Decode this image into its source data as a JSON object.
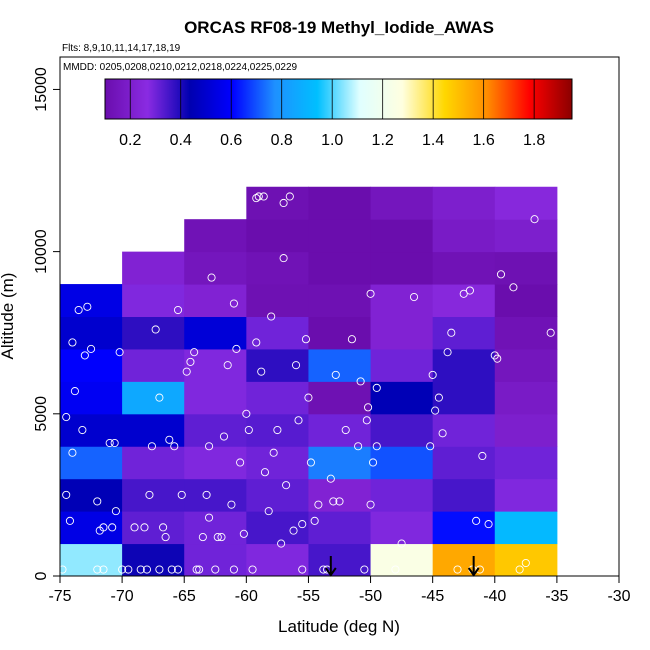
{
  "chart_data": {
    "type": "heatmap",
    "title": "ORCAS RF08-19 Methyl_Iodide_AWAS",
    "flights_note": "Flts: 8,9,10,11,14,17,18,19",
    "dates_note": "MMDD: 0205,0208,0210,0212,0218,0224,0225,0229",
    "xlabel": "Latitude (deg N)",
    "ylabel": "Altitude (m)",
    "xlim": [
      -75,
      -30
    ],
    "ylim": [
      0,
      16000
    ],
    "x_ticks": [
      -75,
      -70,
      -65,
      -60,
      -55,
      -50,
      -45,
      -40,
      -35,
      -30
    ],
    "x_tick_labels": [
      "-75",
      "-70",
      "-65",
      "-60",
      "-55",
      "-50",
      "-45",
      "-40",
      "-35",
      "-30"
    ],
    "y_ticks": [
      0,
      5000,
      10000,
      15000
    ],
    "y_tick_labels": [
      "0",
      "5000",
      "10000",
      "15000"
    ],
    "colorbar": {
      "range": [
        0.1,
        1.95
      ],
      "ticks": [
        0.2,
        0.4,
        0.6,
        0.8,
        1.0,
        1.2,
        1.4,
        1.6,
        1.8
      ],
      "tick_labels": [
        "0.2",
        "0.4",
        "0.6",
        "0.8",
        "1.0",
        "1.2",
        "1.4",
        "1.6",
        "1.8"
      ],
      "stops": [
        "#6a0dad",
        "#8a2be2",
        "#0000b0",
        "#0000ff",
        "#1e90ff",
        "#00bfff",
        "#e0ffff",
        "#ffffe0",
        "#ffd700",
        "#ff8c00",
        "#ff0000",
        "#8b0000"
      ]
    },
    "bin_x_width": 5,
    "bin_y_height": 1000,
    "cells": [
      {
        "x": -75,
        "y": 0,
        "v": 1.05
      },
      {
        "x": -75,
        "y": 1000,
        "v": 0.55
      },
      {
        "x": -75,
        "y": 2000,
        "v": 0.45
      },
      {
        "x": -75,
        "y": 3000,
        "v": 0.72
      },
      {
        "x": -75,
        "y": 4000,
        "v": 0.5
      },
      {
        "x": -75,
        "y": 5000,
        "v": 0.58
      },
      {
        "x": -75,
        "y": 6000,
        "v": 0.6
      },
      {
        "x": -75,
        "y": 7000,
        "v": 0.5
      },
      {
        "x": -75,
        "y": 8000,
        "v": 0.55
      },
      {
        "x": -70,
        "y": 0,
        "v": 0.42
      },
      {
        "x": -70,
        "y": 1000,
        "v": 0.32
      },
      {
        "x": -70,
        "y": 2000,
        "v": 0.35
      },
      {
        "x": -70,
        "y": 3000,
        "v": 0.3
      },
      {
        "x": -70,
        "y": 4000,
        "v": 0.5
      },
      {
        "x": -70,
        "y": 5000,
        "v": 0.86
      },
      {
        "x": -70,
        "y": 6000,
        "v": 0.3
      },
      {
        "x": -70,
        "y": 7000,
        "v": 0.38
      },
      {
        "x": -70,
        "y": 8000,
        "v": 0.28
      },
      {
        "x": -70,
        "y": 9000,
        "v": 0.22
      },
      {
        "x": -65,
        "y": 0,
        "v": 0.3
      },
      {
        "x": -65,
        "y": 1000,
        "v": 0.3
      },
      {
        "x": -65,
        "y": 2000,
        "v": 0.35
      },
      {
        "x": -65,
        "y": 3000,
        "v": 0.28
      },
      {
        "x": -65,
        "y": 4000,
        "v": 0.32
      },
      {
        "x": -65,
        "y": 5000,
        "v": 0.28
      },
      {
        "x": -65,
        "y": 6000,
        "v": 0.28
      },
      {
        "x": -65,
        "y": 7000,
        "v": 0.52
      },
      {
        "x": -65,
        "y": 8000,
        "v": 0.22
      },
      {
        "x": -65,
        "y": 9000,
        "v": 0.15
      },
      {
        "x": -65,
        "y": 10000,
        "v": 0.13
      },
      {
        "x": -60,
        "y": 0,
        "v": 0.28
      },
      {
        "x": -60,
        "y": 1000,
        "v": 0.35
      },
      {
        "x": -60,
        "y": 2000,
        "v": 0.32
      },
      {
        "x": -60,
        "y": 3000,
        "v": 0.3
      },
      {
        "x": -60,
        "y": 4000,
        "v": 0.33
      },
      {
        "x": -60,
        "y": 5000,
        "v": 0.3
      },
      {
        "x": -60,
        "y": 6000,
        "v": 0.38
      },
      {
        "x": -60,
        "y": 7000,
        "v": 0.3
      },
      {
        "x": -60,
        "y": 8000,
        "v": 0.12
      },
      {
        "x": -60,
        "y": 9000,
        "v": 0.13
      },
      {
        "x": -60,
        "y": 10000,
        "v": 0.08
      },
      {
        "x": -60,
        "y": 11000,
        "v": 0.12
      },
      {
        "x": -55,
        "y": 0,
        "v": 0.35
      },
      {
        "x": -55,
        "y": 1000,
        "v": 0.32
      },
      {
        "x": -55,
        "y": 2000,
        "v": 0.22
      },
      {
        "x": -55,
        "y": 3000,
        "v": 0.75
      },
      {
        "x": -55,
        "y": 4000,
        "v": 0.3
      },
      {
        "x": -55,
        "y": 5000,
        "v": 0.12
      },
      {
        "x": -55,
        "y": 6000,
        "v": 0.72
      },
      {
        "x": -55,
        "y": 7000,
        "v": 0.1
      },
      {
        "x": -55,
        "y": 8000,
        "v": 0.12
      },
      {
        "x": -55,
        "y": 9000,
        "v": 0.1
      },
      {
        "x": -55,
        "y": 10000,
        "v": 0.1
      },
      {
        "x": -55,
        "y": 11000,
        "v": 0.1
      },
      {
        "x": -50,
        "y": 0,
        "v": 1.25
      },
      {
        "x": -50,
        "y": 1000,
        "v": 0.28
      },
      {
        "x": -50,
        "y": 2000,
        "v": 0.3
      },
      {
        "x": -50,
        "y": 3000,
        "v": 0.7
      },
      {
        "x": -50,
        "y": 4000,
        "v": 0.35
      },
      {
        "x": -50,
        "y": 5000,
        "v": 0.45
      },
      {
        "x": -50,
        "y": 6000,
        "v": 0.3
      },
      {
        "x": -50,
        "y": 7000,
        "v": 0.22
      },
      {
        "x": -50,
        "y": 8000,
        "v": 0.22
      },
      {
        "x": -50,
        "y": 9000,
        "v": 0.1
      },
      {
        "x": -50,
        "y": 10000,
        "v": 0.1
      },
      {
        "x": -50,
        "y": 11000,
        "v": 0.15
      },
      {
        "x": -45,
        "y": 0,
        "v": 1.55
      },
      {
        "x": -45,
        "y": 1000,
        "v": 0.62
      },
      {
        "x": -45,
        "y": 2000,
        "v": 0.35
      },
      {
        "x": -45,
        "y": 3000,
        "v": 0.32
      },
      {
        "x": -45,
        "y": 4000,
        "v": 0.3
      },
      {
        "x": -45,
        "y": 5000,
        "v": 0.38
      },
      {
        "x": -45,
        "y": 6000,
        "v": 0.38
      },
      {
        "x": -45,
        "y": 7000,
        "v": 0.32
      },
      {
        "x": -45,
        "y": 8000,
        "v": 0.25
      },
      {
        "x": -45,
        "y": 9000,
        "v": 0.13
      },
      {
        "x": -45,
        "y": 10000,
        "v": 0.18
      },
      {
        "x": -45,
        "y": 11000,
        "v": 0.2
      },
      {
        "x": -40,
        "y": 0,
        "v": 1.48
      },
      {
        "x": -40,
        "y": 1000,
        "v": 0.92
      },
      {
        "x": -40,
        "y": 2000,
        "v": 0.28
      },
      {
        "x": -40,
        "y": 3000,
        "v": 0.3
      },
      {
        "x": -40,
        "y": 4000,
        "v": 0.2
      },
      {
        "x": -40,
        "y": 5000,
        "v": 0.18
      },
      {
        "x": -40,
        "y": 6000,
        "v": 0.15
      },
      {
        "x": -40,
        "y": 7000,
        "v": 0.13
      },
      {
        "x": -40,
        "y": 8000,
        "v": 0.05
      },
      {
        "x": -40,
        "y": 9000,
        "v": 0.12
      },
      {
        "x": -40,
        "y": 10000,
        "v": 0.2
      },
      {
        "x": -40,
        "y": 11000,
        "v": 0.25
      }
    ],
    "points": [
      [
        -74.8,
        200
      ],
      [
        -74.2,
        1700
      ],
      [
        -74.5,
        2500
      ],
      [
        -74.0,
        3800
      ],
      [
        -74.5,
        4900
      ],
      [
        -73.2,
        4500
      ],
      [
        -73.8,
        5700
      ],
      [
        -74.0,
        7200
      ],
      [
        -73.5,
        8200
      ],
      [
        -72.8,
        8300
      ],
      [
        -73.0,
        6800
      ],
      [
        -72.5,
        7000
      ],
      [
        -72.0,
        2300
      ],
      [
        -71.5,
        1500
      ],
      [
        -71.0,
        4100
      ],
      [
        -70.6,
        4100
      ],
      [
        -71.8,
        1400
      ],
      [
        -72.0,
        200
      ],
      [
        -71.5,
        200
      ],
      [
        -70.8,
        1500
      ],
      [
        -70.5,
        2000
      ],
      [
        -70.2,
        6900
      ],
      [
        -70.0,
        200
      ],
      [
        -69.5,
        200
      ],
      [
        -69.0,
        1500
      ],
      [
        -68.5,
        200
      ],
      [
        -68.2,
        1500
      ],
      [
        -68.0,
        200
      ],
      [
        -67.8,
        2500
      ],
      [
        -67.6,
        4000
      ],
      [
        -67.3,
        7600
      ],
      [
        -67.0,
        5500
      ],
      [
        -67.0,
        200
      ],
      [
        -66.7,
        1500
      ],
      [
        -66.5,
        1200
      ],
      [
        -66.2,
        4200
      ],
      [
        -66.0,
        200
      ],
      [
        -65.8,
        4000
      ],
      [
        -65.5,
        200
      ],
      [
        -65.5,
        8200
      ],
      [
        -65.2,
        2500
      ],
      [
        -64.8,
        6300
      ],
      [
        -64.5,
        6600
      ],
      [
        -64.2,
        6900
      ],
      [
        -64.0,
        200
      ],
      [
        -63.8,
        200
      ],
      [
        -63.5,
        1200
      ],
      [
        -63.2,
        2500
      ],
      [
        -63.0,
        1800
      ],
      [
        -63.0,
        4000
      ],
      [
        -62.5,
        200
      ],
      [
        -62.3,
        1200
      ],
      [
        -62.0,
        1200
      ],
      [
        -61.8,
        4300
      ],
      [
        -61.5,
        6500
      ],
      [
        -61.2,
        2200
      ],
      [
        -61.0,
        200
      ],
      [
        -61.0,
        8400
      ],
      [
        -60.5,
        3500
      ],
      [
        -60.2,
        1300
      ],
      [
        -60.0,
        5000
      ],
      [
        -59.8,
        4500
      ],
      [
        -59.5,
        200
      ],
      [
        -59.2,
        7200
      ],
      [
        -59.0,
        11700
      ],
      [
        -59.2,
        11650
      ],
      [
        -58.8,
        6300
      ],
      [
        -58.5,
        3200
      ],
      [
        -58.2,
        2000
      ],
      [
        -58.0,
        8000
      ],
      [
        -57.8,
        3800
      ],
      [
        -57.5,
        4500
      ],
      [
        -57.2,
        1000
      ],
      [
        -57.0,
        9800
      ],
      [
        -57.0,
        11500
      ],
      [
        -56.8,
        2800
      ],
      [
        -56.5,
        11700
      ],
      [
        -56.2,
        1400
      ],
      [
        -56.0,
        6500
      ],
      [
        -55.8,
        4800
      ],
      [
        -55.5,
        1600
      ],
      [
        -55.5,
        200
      ],
      [
        -55.2,
        7300
      ],
      [
        -55.0,
        5500
      ],
      [
        -54.8,
        3500
      ],
      [
        -54.5,
        1700
      ],
      [
        -54.2,
        2200
      ],
      [
        -53.8,
        200
      ],
      [
        -53.5,
        200
      ],
      [
        -53.2,
        3000
      ],
      [
        -53.0,
        2300
      ],
      [
        -52.5,
        2300
      ],
      [
        -52.0,
        4500
      ],
      [
        -51.5,
        7300
      ],
      [
        -51.0,
        4000
      ],
      [
        -50.8,
        6000
      ],
      [
        -50.5,
        200
      ],
      [
        -50.3,
        4800
      ],
      [
        -50.2,
        5200
      ],
      [
        -50.0,
        2200
      ],
      [
        -50.0,
        8700
      ],
      [
        -49.8,
        3500
      ],
      [
        -49.5,
        5800
      ],
      [
        -49.5,
        4000
      ],
      [
        -48.0,
        200
      ],
      [
        -47.5,
        1000
      ],
      [
        -46.5,
        8600
      ],
      [
        -45.2,
        4000
      ],
      [
        -45.0,
        6200
      ],
      [
        -44.8,
        5100
      ],
      [
        -44.5,
        5500
      ],
      [
        -44.2,
        4400
      ],
      [
        -43.8,
        6900
      ],
      [
        -43.5,
        7500
      ],
      [
        -43.0,
        200
      ],
      [
        -42.5,
        8700
      ],
      [
        -42.0,
        8800
      ],
      [
        -41.5,
        1700
      ],
      [
        -41.0,
        3700
      ],
      [
        -40.5,
        1600
      ],
      [
        -40.0,
        6800
      ],
      [
        -39.8,
        6700
      ],
      [
        -39.5,
        9300
      ],
      [
        -38.5,
        8900
      ],
      [
        -38.0,
        200
      ],
      [
        -37.5,
        400
      ],
      [
        -36.8,
        11000
      ],
      [
        -35.5,
        7500
      ],
      [
        -41.8,
        200
      ],
      [
        -41.2,
        200
      ],
      [
        -52.8,
        6200
      ],
      [
        -58.6,
        11700
      ],
      [
        -60.8,
        7000
      ],
      [
        -62.8,
        9200
      ]
    ],
    "arrows": [
      -53.2,
      -41.7
    ]
  }
}
